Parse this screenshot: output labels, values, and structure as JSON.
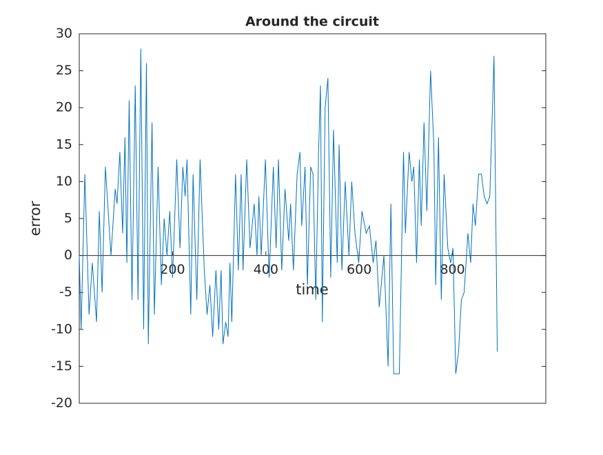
{
  "chart_data": {
    "type": "line",
    "title": "Around the circuit",
    "xlabel": "time",
    "ylabel": "error",
    "xlim": [
      0,
      1000
    ],
    "ylim": [
      -20,
      30
    ],
    "xticks": [
      200,
      400,
      600,
      800
    ],
    "yticks": [
      -20,
      -15,
      -10,
      -5,
      0,
      5,
      10,
      15,
      20,
      25,
      30
    ],
    "x": [
      0,
      4,
      12,
      21,
      28,
      37,
      43,
      49,
      56,
      68,
      77,
      81,
      87,
      93,
      98,
      102,
      107,
      113,
      120,
      126,
      132,
      138,
      144,
      148,
      156,
      161,
      169,
      176,
      182,
      188,
      194,
      200,
      209,
      216,
      222,
      227,
      231,
      239,
      244,
      252,
      259,
      268,
      274,
      280,
      286,
      293,
      299,
      304,
      308,
      314,
      319,
      323,
      327,
      335,
      341,
      347,
      351,
      359,
      366,
      375,
      381,
      385,
      390,
      399,
      407,
      416,
      422,
      427,
      434,
      441,
      449,
      453,
      459,
      467,
      473,
      477,
      484,
      489,
      496,
      501,
      507,
      513,
      517,
      521,
      527,
      533,
      539,
      545,
      553,
      557,
      563,
      570,
      578,
      584,
      591,
      599,
      606,
      615,
      622,
      630,
      636,
      643,
      653,
      662,
      668,
      674,
      686,
      695,
      699,
      707,
      713,
      717,
      723,
      729,
      733,
      739,
      745,
      753,
      760,
      764,
      770,
      776,
      782,
      790,
      796,
      801,
      807,
      813,
      819,
      825,
      833,
      839,
      844,
      849,
      856,
      862,
      868,
      874,
      880,
      889,
      896
    ],
    "series": [
      {
        "name": "error",
        "color": "#0072bd",
        "values": [
          0,
          -10,
          11,
          -8,
          -1,
          -9,
          6,
          -5,
          12,
          0,
          9,
          7,
          14,
          3,
          16,
          -1,
          21,
          -6,
          23,
          -6,
          28,
          -10,
          26,
          -12,
          18,
          -8,
          12,
          -4,
          5,
          0,
          6,
          -3,
          13,
          1,
          12,
          8,
          13,
          -8,
          11,
          -6,
          13,
          -2,
          -8,
          -4,
          -11,
          -2,
          -10,
          -2,
          -12,
          -9,
          -11,
          -1,
          -9,
          11,
          -2,
          11,
          -2,
          13,
          1,
          7,
          0,
          8,
          0,
          13,
          -3,
          12,
          1,
          13,
          -2,
          9,
          2,
          7,
          -2,
          11,
          14,
          4,
          12,
          -4,
          12,
          11,
          -6,
          14,
          23,
          -9,
          20,
          24,
          -3,
          17,
          -1,
          15,
          -2,
          10,
          0,
          10,
          3,
          -1,
          6,
          3,
          4,
          -1,
          2,
          -7,
          0,
          -15,
          7,
          -16,
          -16,
          14,
          3,
          14,
          10,
          12,
          -1,
          13,
          4,
          18,
          6,
          25,
          15,
          -4,
          16,
          -6,
          11,
          1,
          -1,
          1,
          -16,
          -13,
          -6,
          -5,
          3,
          -1,
          7,
          4,
          11,
          11,
          8,
          7,
          8,
          27,
          -13
        ]
      }
    ]
  }
}
